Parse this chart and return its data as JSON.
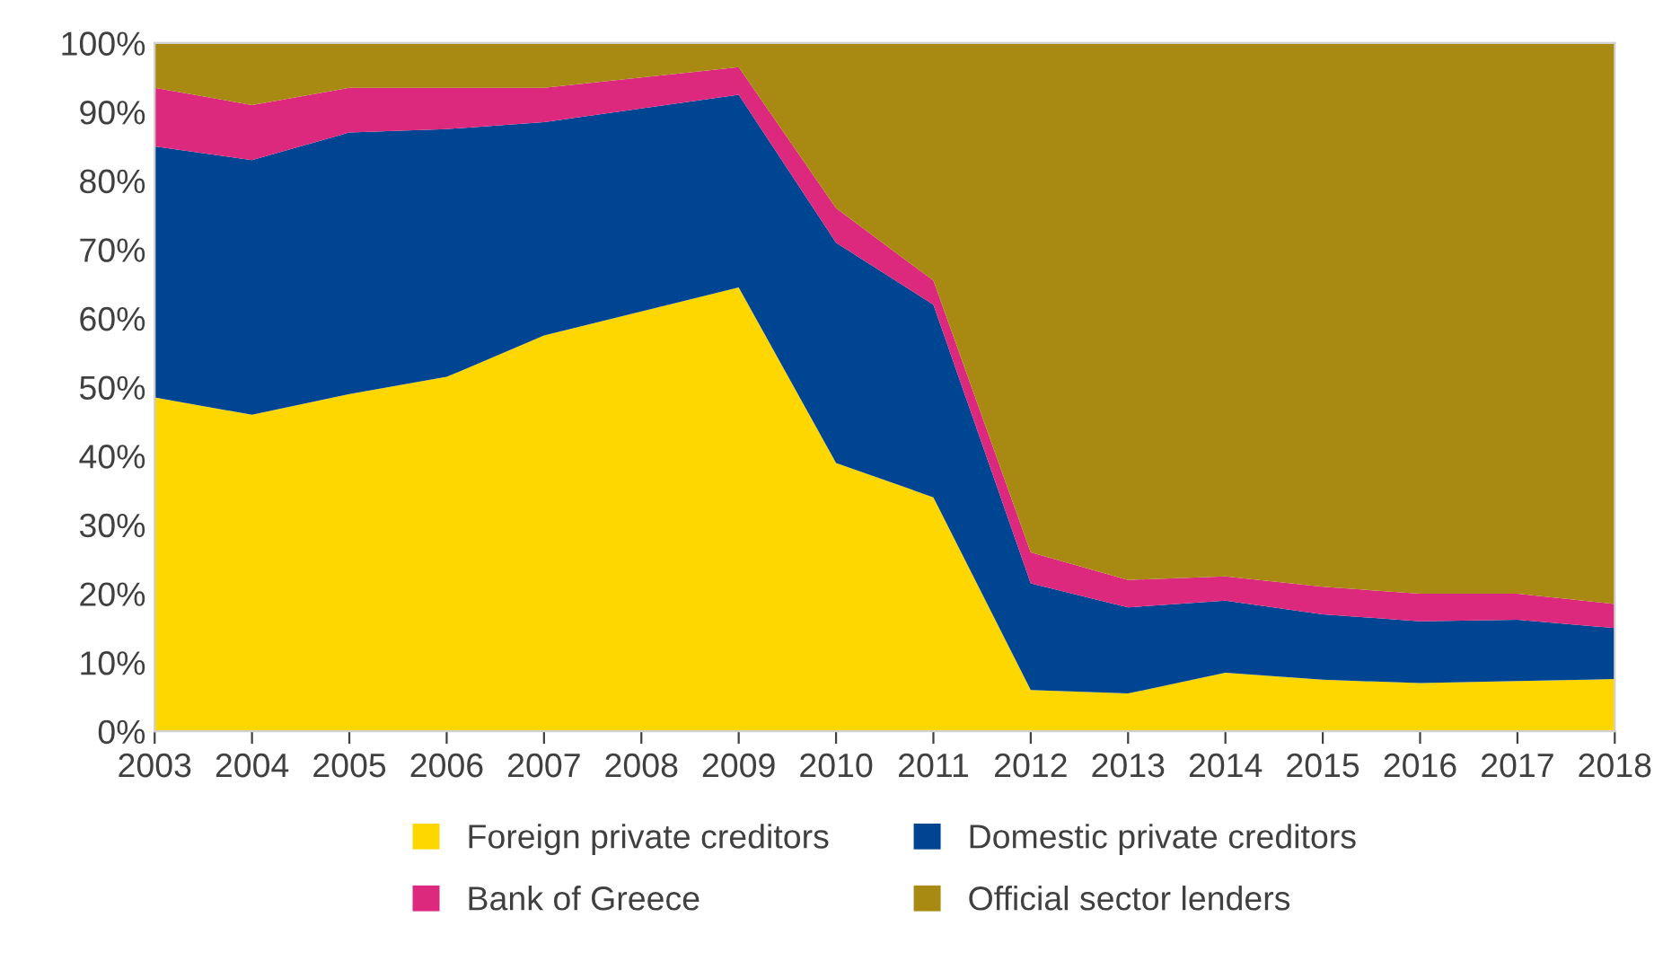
{
  "chart_data": {
    "type": "area",
    "stacked": true,
    "categories": [
      "2003",
      "2004",
      "2005",
      "2006",
      "2007",
      "2008",
      "2009",
      "2010",
      "2011",
      "2012",
      "2013",
      "2014",
      "2015",
      "2016",
      "2017",
      "2018"
    ],
    "series": [
      {
        "name": "Foreign private creditors",
        "color": "#fed700",
        "values": [
          48.5,
          46,
          49,
          51.5,
          57.5,
          61,
          64.5,
          39,
          34,
          6,
          5.5,
          8.5,
          7.5,
          7,
          7.3,
          7.6
        ]
      },
      {
        "name": "Domestic private creditors",
        "color": "#004592",
        "values": [
          36.5,
          37,
          38,
          36,
          31,
          29.5,
          28,
          32,
          28,
          15.5,
          12.5,
          10.5,
          9.5,
          9,
          8.9,
          7.4
        ]
      },
      {
        "name": "Bank of Greece",
        "color": "#dc287d",
        "values": [
          8.5,
          8,
          6.5,
          6,
          5,
          4.5,
          4,
          5,
          3.5,
          4.5,
          4,
          3.5,
          4,
          4,
          3.8,
          3.5
        ]
      },
      {
        "name": "Official sector lenders",
        "color": "#a88a12",
        "values": [
          6.5,
          9,
          6.5,
          6.5,
          6.5,
          5,
          3.5,
          24,
          34.5,
          74,
          78,
          77.5,
          79,
          80,
          80,
          81.5
        ]
      }
    ],
    "ylim": [
      0,
      100
    ],
    "yticks": [
      {
        "value": 0,
        "label": "0%"
      },
      {
        "value": 10,
        "label": "10%"
      },
      {
        "value": 20,
        "label": "20%"
      },
      {
        "value": 30,
        "label": "30%"
      },
      {
        "value": 40,
        "label": "40%"
      },
      {
        "value": 50,
        "label": "50%"
      },
      {
        "value": 60,
        "label": "60%"
      },
      {
        "value": 70,
        "label": "70%"
      },
      {
        "value": 80,
        "label": "80%"
      },
      {
        "value": 90,
        "label": "90%"
      },
      {
        "value": 100,
        "label": "100%"
      }
    ],
    "grid": false,
    "legend": "bottom"
  }
}
